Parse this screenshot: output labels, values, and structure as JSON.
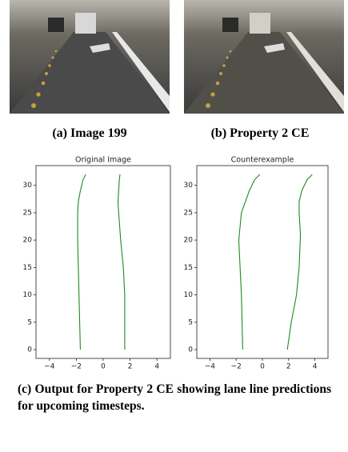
{
  "figure": {
    "subfigures": [
      {
        "caption": "(a) Image 199"
      },
      {
        "caption": "(b) Property 2 CE"
      }
    ],
    "caption": "(c) Output for Property 2 CE showing lane line predictions for upcoming timesteps."
  },
  "chart_data": [
    {
      "type": "line",
      "title": "Original Image",
      "xlim": [
        -5,
        5
      ],
      "xticks": [
        {
          "value": -4,
          "label": "−4"
        },
        {
          "value": -2,
          "label": "−2"
        },
        0,
        2,
        4
      ],
      "ylim": [
        -1.6,
        33.6
      ],
      "yticks": [
        0,
        5,
        10,
        15,
        20,
        25,
        30
      ],
      "series": [
        {
          "color": "#1f8a1f",
          "x": [
            -1.7,
            -1.75,
            -1.8,
            -1.85,
            -1.9,
            -1.9,
            -1.85,
            -1.7,
            -1.5,
            -1.3
          ],
          "values": [
            0,
            5,
            10,
            15,
            20,
            25,
            27,
            29,
            31,
            32
          ]
        },
        {
          "color": "#1f8a1f",
          "x": [
            1.6,
            1.6,
            1.6,
            1.5,
            1.3,
            1.15,
            1.1,
            1.15,
            1.2,
            1.25
          ],
          "values": [
            0,
            5,
            10,
            15,
            20,
            25,
            27,
            29,
            31,
            32
          ]
        }
      ]
    },
    {
      "type": "line",
      "title": "Counterexample",
      "xlim": [
        -5,
        5
      ],
      "xticks": [
        {
          "value": -4,
          "label": "−4"
        },
        {
          "value": -2,
          "label": "−2"
        },
        0,
        2,
        4
      ],
      "ylim": [
        -1.6,
        33.6
      ],
      "yticks": [
        0,
        5,
        10,
        15,
        20,
        25,
        30
      ],
      "series": [
        {
          "color": "#1f8a1f",
          "x": [
            -1.5,
            -1.55,
            -1.6,
            -1.7,
            -1.8,
            -1.6,
            -1.3,
            -1.0,
            -0.6,
            -0.2
          ],
          "values": [
            0,
            5,
            10,
            15,
            20,
            25,
            27,
            29,
            31,
            32
          ]
        },
        {
          "color": "#1f8a1f",
          "x": [
            1.9,
            2.2,
            2.6,
            2.8,
            2.9,
            2.8,
            2.8,
            3.0,
            3.4,
            3.8
          ],
          "values": [
            0,
            5,
            10,
            15,
            21,
            25,
            27,
            29,
            31,
            32
          ]
        }
      ]
    }
  ]
}
